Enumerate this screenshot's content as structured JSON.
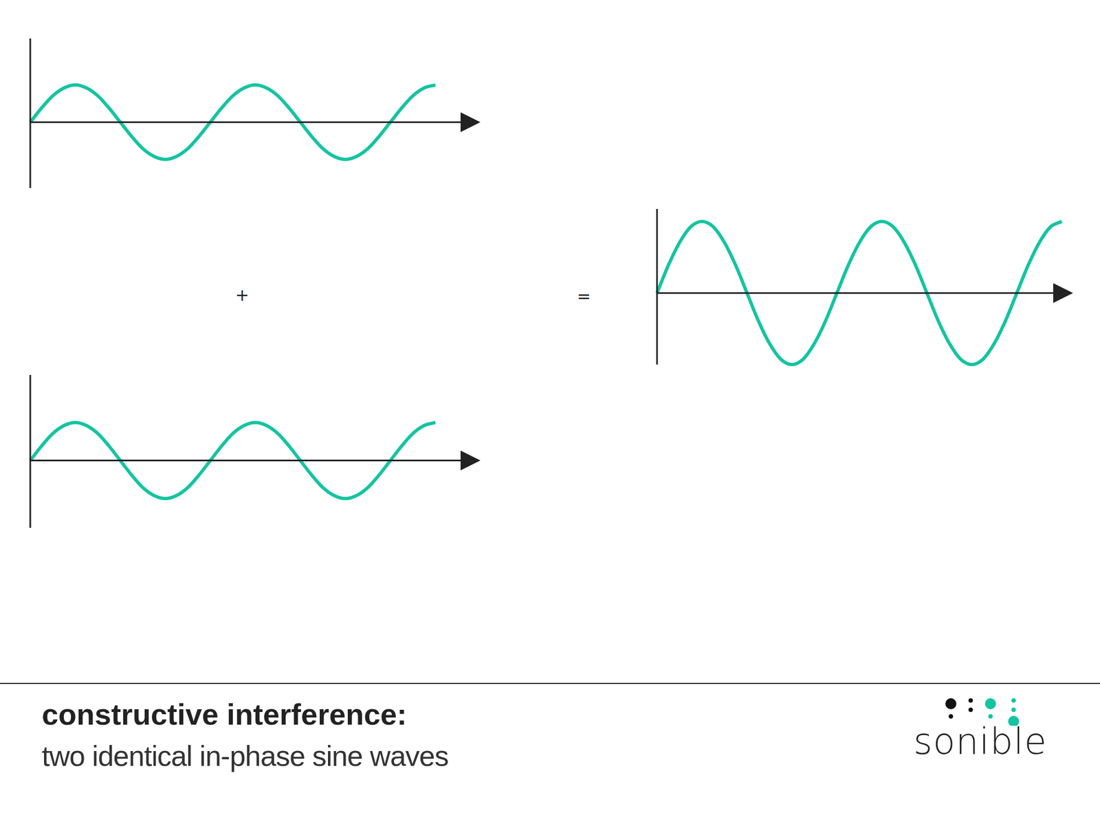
{
  "chart_data": [
    {
      "type": "line",
      "color": "#14c4a0",
      "tick_labels": false,
      "x": [
        0,
        0.25,
        0.5,
        0.75,
        1,
        1.25,
        1.5,
        1.75,
        2,
        2.25,
        2.5,
        2.75,
        3,
        3.25,
        3.5,
        3.75,
        4,
        4.25,
        4.5,
        4.75,
        5,
        5.25,
        5.5,
        5.75,
        6,
        6.25,
        6.5,
        6.75,
        7,
        7.25,
        7.5,
        7.75,
        8,
        8.25,
        8.5,
        8.75,
        9
      ],
      "values": [
        0,
        0.38,
        0.71,
        0.92,
        1,
        0.92,
        0.71,
        0.38,
        0,
        -0.38,
        -0.71,
        -0.92,
        -1,
        -0.92,
        -0.71,
        -0.38,
        0,
        0.38,
        0.71,
        0.92,
        1,
        0.92,
        0.71,
        0.38,
        0,
        -0.38,
        -0.71,
        -0.92,
        -1,
        -0.92,
        -0.71,
        -0.38,
        0,
        0.38,
        0.71,
        0.92,
        1
      ],
      "xlim": [
        0,
        10
      ],
      "ylim": [
        -1.77,
        2.25
      ]
    },
    {
      "type": "line",
      "color": "#14c4a0",
      "tick_labels": false,
      "x": [
        0,
        0.25,
        0.5,
        0.75,
        1,
        1.25,
        1.5,
        1.75,
        2,
        2.25,
        2.5,
        2.75,
        3,
        3.25,
        3.5,
        3.75,
        4,
        4.25,
        4.5,
        4.75,
        5,
        5.25,
        5.5,
        5.75,
        6,
        6.25,
        6.5,
        6.75,
        7,
        7.25,
        7.5,
        7.75,
        8,
        8.25,
        8.5,
        8.75,
        9
      ],
      "values": [
        0,
        0.38,
        0.71,
        0.92,
        1,
        0.92,
        0.71,
        0.38,
        0,
        -0.38,
        -0.71,
        -0.92,
        -1,
        -0.92,
        -0.71,
        -0.38,
        0,
        0.38,
        0.71,
        0.92,
        1,
        0.92,
        0.71,
        0.38,
        0,
        -0.38,
        -0.71,
        -0.92,
        -1,
        -0.92,
        -0.71,
        -0.38,
        0,
        0.38,
        0.71,
        0.92,
        1
      ],
      "xlim": [
        0,
        10
      ],
      "ylim": [
        -1.77,
        2.25
      ]
    },
    {
      "type": "line",
      "color": "#14c4a0",
      "tick_labels": false,
      "x": [
        0,
        0.25,
        0.5,
        0.75,
        1,
        1.25,
        1.5,
        1.75,
        2,
        2.25,
        2.5,
        2.75,
        3,
        3.25,
        3.5,
        3.75,
        4,
        4.25,
        4.5,
        4.75,
        5,
        5.25,
        5.5,
        5.75,
        6,
        6.25,
        6.5,
        6.75,
        7,
        7.25,
        7.5,
        7.75,
        8,
        8.25,
        8.5,
        8.75,
        9
      ],
      "values": [
        0,
        0.77,
        1.41,
        1.85,
        2,
        1.85,
        1.41,
        0.77,
        0,
        -0.77,
        -1.41,
        -1.85,
        -2,
        -1.85,
        -1.41,
        -0.77,
        0,
        0.77,
        1.41,
        1.85,
        2,
        1.85,
        1.41,
        0.77,
        0,
        -0.77,
        -1.41,
        -1.85,
        -2,
        -1.85,
        -1.41,
        -0.77,
        0,
        0.77,
        1.41,
        1.85,
        2
      ],
      "xlim": [
        0,
        9.25
      ],
      "ylim": [
        -2,
        2.35
      ]
    }
  ],
  "operators": {
    "plus": "+",
    "equals": "="
  },
  "caption": {
    "title": "constructive interference:",
    "subtitle": "two identical in-phase sine waves"
  },
  "logo": "sonible"
}
